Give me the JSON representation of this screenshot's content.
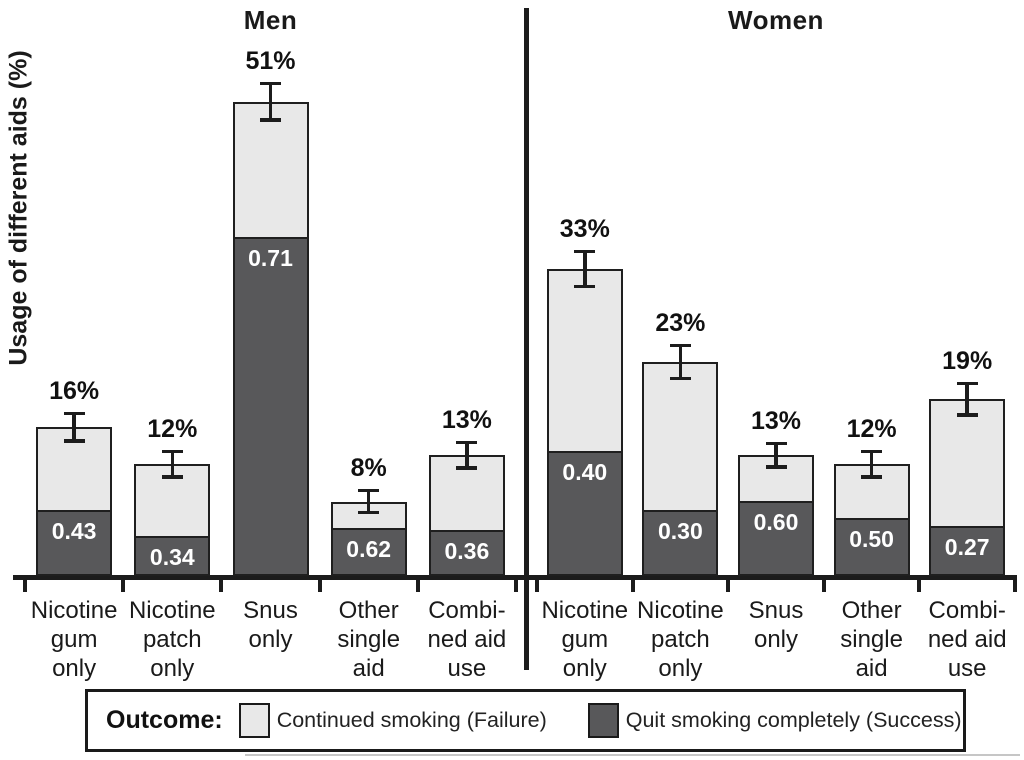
{
  "chart_data": {
    "type": "bar",
    "stacked": true,
    "orientation": "vertical",
    "title": "",
    "ylabel": "Usage of different aids (%)",
    "xlabel": "",
    "ylim": [
      0,
      55
    ],
    "grid": false,
    "legend_position": "bottom",
    "legend_title": "Outcome:",
    "series_legend": [
      {
        "label": "Continued smoking (Failure)",
        "segment": "top",
        "color": "#e8e8e8"
      },
      {
        "label": "Quit smoking completely (Success)",
        "segment": "bottom",
        "color": "#58585a"
      }
    ],
    "panels": [
      {
        "title": "Men",
        "categories": [
          "Nicotine\ngum\nonly",
          "Nicotine\npatch\nonly",
          "Snus\nonly",
          "Other\nsingle\naid",
          "Combi-\nned aid\nuse"
        ],
        "bars": [
          {
            "usage_pct": 16,
            "usage_label": "16%",
            "success_share": 0.43,
            "success_label": "0.43",
            "error_pct": 1.5
          },
          {
            "usage_pct": 12,
            "usage_label": "12%",
            "success_share": 0.34,
            "success_label": "0.34",
            "error_pct": 1.4
          },
          {
            "usage_pct": 51,
            "usage_label": "51%",
            "success_share": 0.71,
            "success_label": "0.71",
            "error_pct": 2.0
          },
          {
            "usage_pct": 8,
            "usage_label": "8%",
            "success_share": 0.62,
            "success_label": "0.62",
            "error_pct": 1.2
          },
          {
            "usage_pct": 13,
            "usage_label": "13%",
            "success_share": 0.36,
            "success_label": "0.36",
            "error_pct": 1.4
          }
        ]
      },
      {
        "title": "Women",
        "categories": [
          "Nicotine\ngum\nonly",
          "Nicotine\npatch\nonly",
          "Snus\nonly",
          "Other\nsingle\naid",
          "Combi-\nned aid\nuse"
        ],
        "bars": [
          {
            "usage_pct": 33,
            "usage_label": "33%",
            "success_share": 0.4,
            "success_label": "0.40",
            "error_pct": 1.9
          },
          {
            "usage_pct": 23,
            "usage_label": "23%",
            "success_share": 0.3,
            "success_label": "0.30",
            "error_pct": 1.8
          },
          {
            "usage_pct": 13,
            "usage_label": "13%",
            "success_share": 0.6,
            "success_label": "0.60",
            "error_pct": 1.3
          },
          {
            "usage_pct": 12,
            "usage_label": "12%",
            "success_share": 0.5,
            "success_label": "0.50",
            "error_pct": 1.4
          },
          {
            "usage_pct": 19,
            "usage_label": "19%",
            "success_share": 0.27,
            "success_label": "0.27",
            "error_pct": 1.7
          }
        ]
      }
    ],
    "colors": {
      "failure_fill": "#e8e8e8",
      "success_fill": "#58585a",
      "line": "#1c1c1c",
      "background": "#ffffff"
    }
  }
}
